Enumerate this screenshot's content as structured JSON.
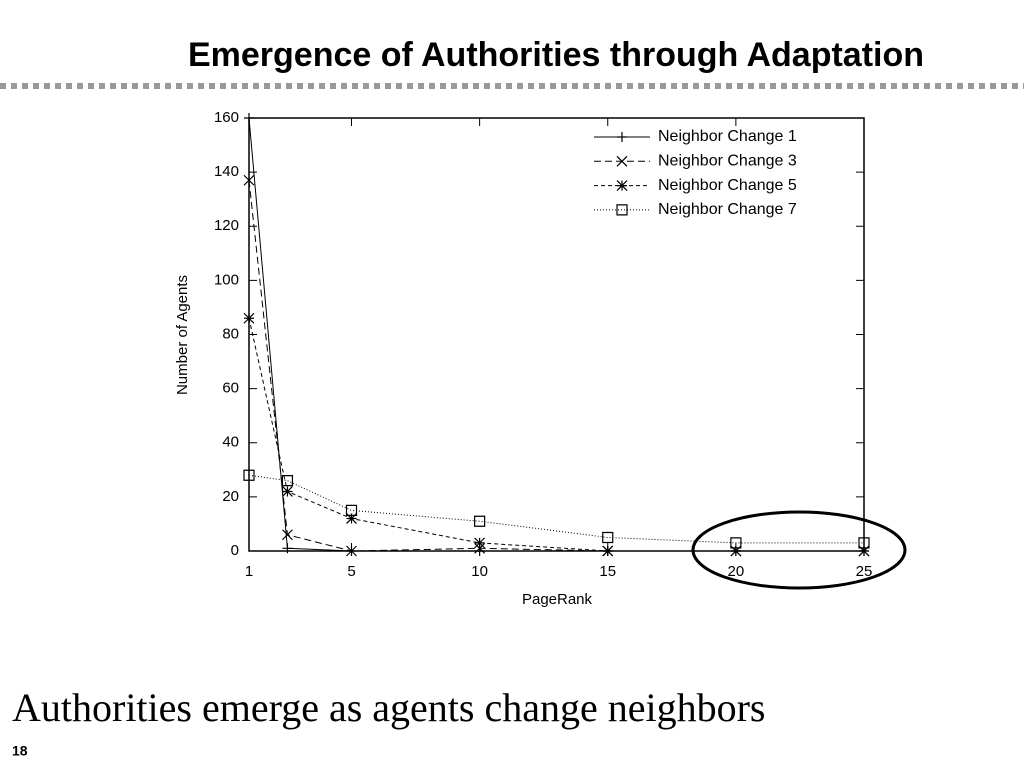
{
  "slide": {
    "title": "Emergence of Authorities through Adaptation",
    "caption": "Authorities emerge as agents change neighbors",
    "page_number": "18"
  },
  "chart_data": {
    "type": "line",
    "x_label": "PageRank",
    "y_label": "Number of Agents",
    "x": [
      1,
      2.5,
      5,
      10,
      15,
      20,
      25
    ],
    "series": [
      {
        "name": "Neighbor Change 1",
        "color": "#000000",
        "marker": "plus",
        "dash": "solid",
        "values": [
          160,
          1,
          0,
          0,
          0,
          0,
          0
        ]
      },
      {
        "name": "Neighbor Change 3",
        "color": "#000000",
        "marker": "x",
        "dash": "dashed",
        "values": [
          137,
          6,
          0,
          1,
          0,
          0,
          0
        ]
      },
      {
        "name": "Neighbor Change 5",
        "color": "#000000",
        "marker": "star",
        "dash": "short-dashed",
        "values": [
          86,
          22,
          12,
          3,
          0,
          0,
          0
        ]
      },
      {
        "name": "Neighbor Change 7",
        "color": "#000000",
        "marker": "square",
        "dash": "dotted",
        "values": [
          28,
          26,
          15,
          11,
          5,
          3,
          3
        ]
      }
    ],
    "xlim": [
      1,
      25
    ],
    "xticks": [
      1,
      5,
      10,
      15,
      20,
      25
    ],
    "ylim": [
      0,
      160
    ],
    "yticks": [
      0,
      20,
      40,
      60,
      80,
      100,
      120,
      140,
      160
    ],
    "grid": false,
    "legend": "top-right"
  }
}
